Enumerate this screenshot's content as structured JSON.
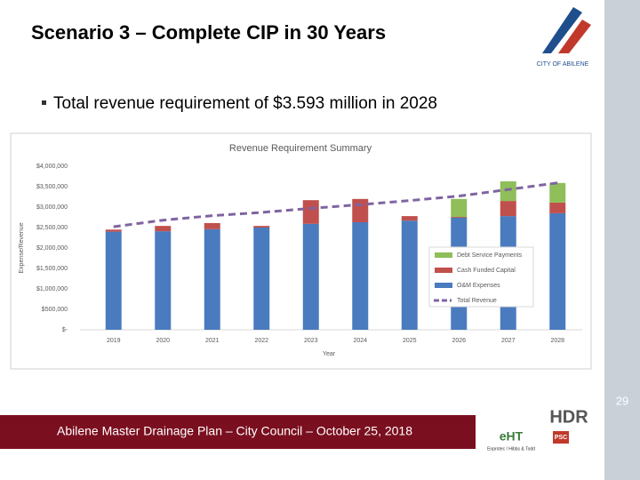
{
  "slide": {
    "title": "Scenario 3 – Complete CIP in 30 Years",
    "bullet": "Total revenue requirement of $3.593 million in 2028",
    "page_number": "29",
    "footer": "Abilene Master Drainage Plan – City Council – October 25, 2018",
    "logos": {
      "city": "CITY OF ABILENE",
      "hdr": "HDR",
      "eht": "eHT",
      "eht_sub": "Enprotec / Hibbs & Todd",
      "psc": "PSC"
    }
  },
  "chart_data": {
    "type": "bar",
    "stacked": true,
    "title": "Revenue Requirement Summary",
    "x_label": "Year",
    "y_label": "Expense/Revenue",
    "categories": [
      "2019",
      "2020",
      "2021",
      "2022",
      "2023",
      "2024",
      "2025",
      "2026",
      "2027",
      "2028"
    ],
    "series": [
      {
        "name": "O&M Expenses",
        "color": "#4a7bbf",
        "values": [
          2400000,
          2410000,
          2460000,
          2500000,
          2590000,
          2630000,
          2670000,
          2740000,
          2780000,
          2850000
        ]
      },
      {
        "name": "Cash Funded Capital",
        "color": "#c0504d",
        "values": [
          50000,
          130000,
          150000,
          40000,
          580000,
          570000,
          110000,
          20000,
          370000,
          260000
        ]
      },
      {
        "name": "Debt Service Payments",
        "color": "#8fbe5a",
        "values": [
          0,
          0,
          0,
          0,
          0,
          0,
          0,
          440000,
          480000,
          480000
        ]
      },
      {
        "name": "Total Revenue",
        "type": "line",
        "color": "#8064a2",
        "values": [
          2520000,
          2680000,
          2790000,
          2870000,
          2970000,
          3060000,
          3160000,
          3270000,
          3430000,
          3593000
        ]
      }
    ],
    "ylim": [
      0,
      4000000
    ],
    "yticks": [
      {
        "value": 0,
        "label": "$-"
      },
      {
        "value": 500000,
        "label": "$500,000"
      },
      {
        "value": 1000000,
        "label": "$1,000,000"
      },
      {
        "value": 1500000,
        "label": "$1,500,000"
      },
      {
        "value": 2000000,
        "label": "$2,000,000"
      },
      {
        "value": 2500000,
        "label": "$2,500,000"
      },
      {
        "value": 3000000,
        "label": "$3,000,000"
      },
      {
        "value": 3500000,
        "label": "$3,500,000"
      },
      {
        "value": 4000000,
        "label": "$4,000,000"
      }
    ],
    "grid": false,
    "legend": "right"
  }
}
